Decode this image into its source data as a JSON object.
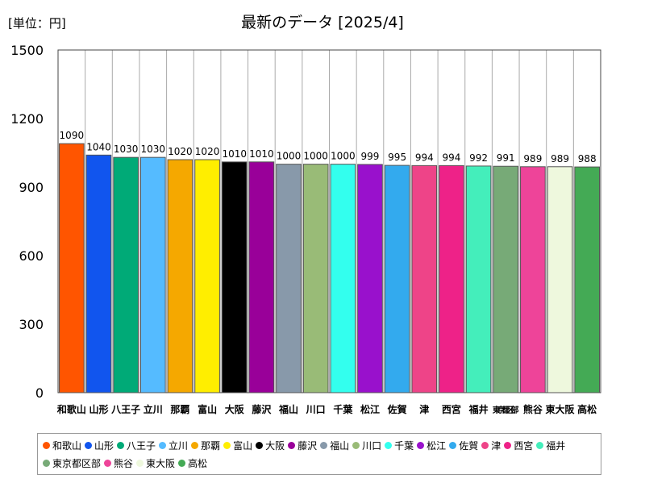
{
  "unit_label": "[単位：円]",
  "chart_data": {
    "type": "bar",
    "title": "最新のデータ [2025/4]",
    "xlabel": "",
    "ylabel": "",
    "ylim": [
      0,
      1500
    ],
    "yticks": [
      0,
      300,
      600,
      900,
      1200,
      1500
    ],
    "grid": "vertical-lines",
    "legend_position": "bottom",
    "categories": [
      "和歌山",
      "山形",
      "八王子",
      "立川",
      "那覇",
      "富山",
      "大阪",
      "藤沢",
      "福山",
      "川口",
      "千葉",
      "松江",
      "佐賀",
      "津",
      "西宮",
      "福井",
      "東京都区部",
      "熊谷",
      "東大阪",
      "高松"
    ],
    "values": [
      1090,
      1040,
      1030,
      1030,
      1020,
      1020,
      1010,
      1010,
      1000,
      1000,
      1000,
      999,
      995,
      994,
      994,
      992,
      991,
      989,
      989,
      988
    ],
    "colors": [
      "#ff5500",
      "#1155ee",
      "#00aa77",
      "#55bbff",
      "#f5a800",
      "#ffee00",
      "#000000",
      "#990099",
      "#8899aa",
      "#99bb77",
      "#33ffee",
      "#9911cc",
      "#33aaee",
      "#ee4488",
      "#ee2288",
      "#44eebb",
      "#77aa77",
      "#ee4499",
      "#eef8dd",
      "#44aa55"
    ]
  }
}
